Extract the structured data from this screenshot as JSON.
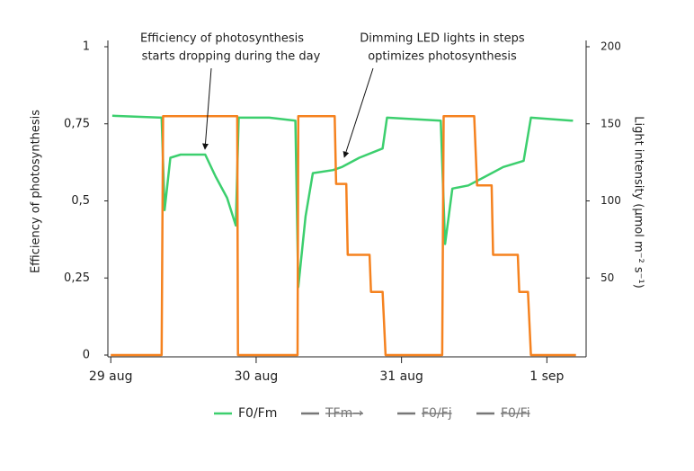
{
  "chart_data": {
    "type": "line",
    "annotations": [
      {
        "lines": [
          "Efficiency of photosynthesis",
          "starts dropping during the day"
        ]
      },
      {
        "lines": [
          "Dimming LED lights in steps",
          "optimizes photosynthesis"
        ]
      }
    ],
    "ylabel": "Efficiency of photosynthesis",
    "y2label": "Light intensity (µmol m⁻² s⁻¹)",
    "xlim": [
      -0.02,
      3.27
    ],
    "xticks": [
      {
        "value": 0,
        "label": "29 aug"
      },
      {
        "value": 1,
        "label": "30 aug"
      },
      {
        "value": 2,
        "label": "31 aug"
      },
      {
        "value": 3,
        "label": "1 sep"
      }
    ],
    "ylim": [
      0,
      1
    ],
    "yticks": [
      0,
      {
        "value": 0.25,
        "label": "0,25"
      },
      {
        "value": 0.5,
        "label": "0,5"
      },
      {
        "value": 0.75,
        "label": "0,75"
      },
      1
    ],
    "y2lim": [
      0,
      200
    ],
    "y2ticks": [
      50,
      100,
      150,
      200
    ],
    "legend": [
      {
        "label": "F0/Fm",
        "color": "#3ccf6e",
        "hidden": false
      },
      {
        "label": "TFm→",
        "color": "#777777",
        "hidden": true
      },
      {
        "label": "F0/Fj",
        "color": "#777777",
        "hidden": true
      },
      {
        "label": "F0/Fi",
        "color": "#777777",
        "hidden": true
      }
    ],
    "series": [
      {
        "color": "#3ccf6e",
        "x": [
          0.01,
          0.35,
          0.37,
          0.41,
          0.48,
          0.65,
          0.72,
          0.8,
          0.86,
          0.88,
          1.09,
          1.27,
          1.29,
          1.34,
          1.39,
          1.53,
          1.59,
          1.71,
          1.87,
          1.9,
          2.27,
          2.3,
          2.35,
          2.46,
          2.58,
          2.7,
          2.84,
          2.89,
          3.18
        ],
        "values": [
          0.776,
          0.77,
          0.47,
          0.64,
          0.65,
          0.65,
          0.58,
          0.51,
          0.42,
          0.77,
          0.77,
          0.76,
          0.22,
          0.45,
          0.59,
          0.6,
          0.61,
          0.64,
          0.67,
          0.77,
          0.76,
          0.36,
          0.54,
          0.55,
          0.58,
          0.61,
          0.63,
          0.77,
          0.76
        ]
      },
      {
        "color": "#f5821f",
        "axis": "y2",
        "x": [
          0,
          0.35,
          0.36,
          0.87,
          0.875,
          1.285,
          1.29,
          1.54,
          1.55,
          1.62,
          1.63,
          1.78,
          1.79,
          1.87,
          1.89,
          2.28,
          2.29,
          2.5,
          2.52,
          2.62,
          2.63,
          2.8,
          2.81,
          2.87,
          2.89,
          3.2
        ],
        "values": [
          0,
          0,
          155,
          155,
          0,
          0,
          155,
          155,
          111,
          111,
          65,
          65,
          41,
          41,
          0,
          0,
          155,
          155,
          110,
          110,
          65,
          65,
          41,
          41,
          0,
          0
        ]
      }
    ]
  }
}
